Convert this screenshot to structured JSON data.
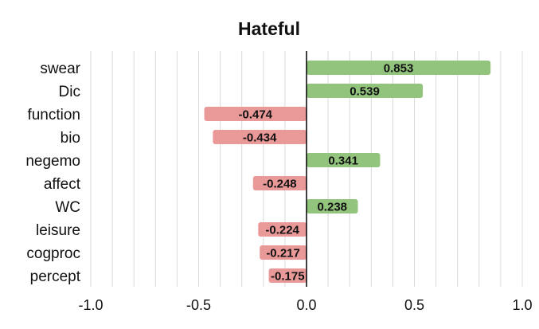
{
  "chart_data": {
    "type": "bar",
    "orientation": "horizontal",
    "title": "Hateful",
    "xlabel": "",
    "ylabel": "",
    "xlim": [
      -1.0,
      1.0
    ],
    "xticks": [
      "-1.0",
      "-0.5",
      "0.0",
      "0.5",
      "1.0"
    ],
    "categories": [
      "swear",
      "Dic",
      "function",
      "bio",
      "negemo",
      "affect",
      "WC",
      "leisure",
      "cogproc",
      "percept"
    ],
    "values": [
      0.853,
      0.539,
      -0.474,
      -0.434,
      0.341,
      -0.248,
      0.238,
      -0.224,
      -0.217,
      -0.175
    ],
    "value_labels": [
      "0.853",
      "0.539",
      "-0.474",
      "-0.434",
      "0.341",
      "-0.248",
      "0.238",
      "-0.224",
      "-0.217",
      "-0.175"
    ],
    "grid": true,
    "legend": "none",
    "colors": {
      "positive": "#93c47d",
      "negative": "#ea9999",
      "grid": "#d9d9d9",
      "zero_line": "#000000"
    }
  }
}
